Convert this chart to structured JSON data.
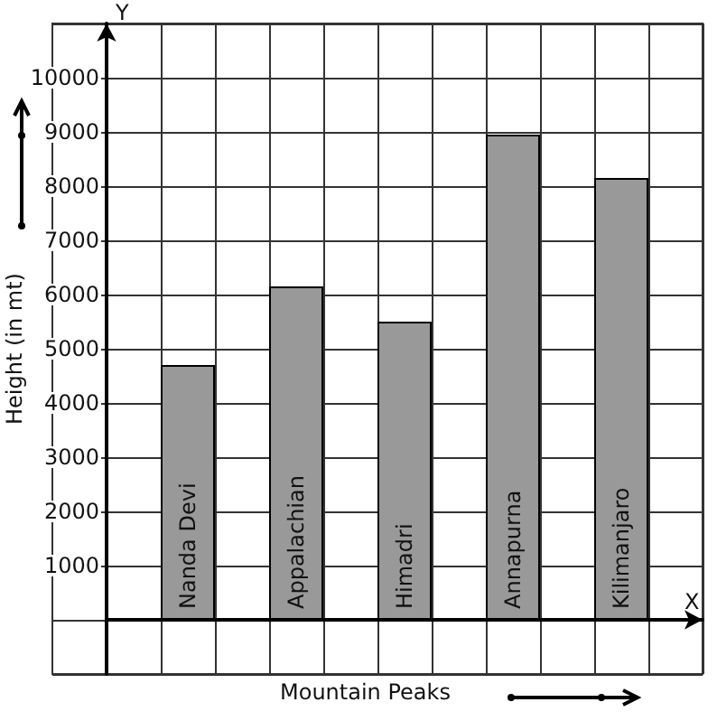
{
  "chart_data": {
    "type": "bar",
    "xlabel": "Mountain Peaks",
    "ylabel": "Height (in mt)",
    "categories": [
      "Nanda Devi",
      "Appalachian",
      "Himadri",
      "Annapurna",
      "Kilimanjaro"
    ],
    "values": [
      4700,
      6150,
      5500,
      8950,
      8150
    ],
    "color": "#999999",
    "ylim": [
      -1000,
      11000
    ],
    "yticks": [
      1000,
      2000,
      3000,
      4000,
      5000,
      6000,
      7000,
      8000,
      9000,
      10000
    ],
    "grid": true,
    "annotations": [
      "X",
      "Y"
    ]
  }
}
